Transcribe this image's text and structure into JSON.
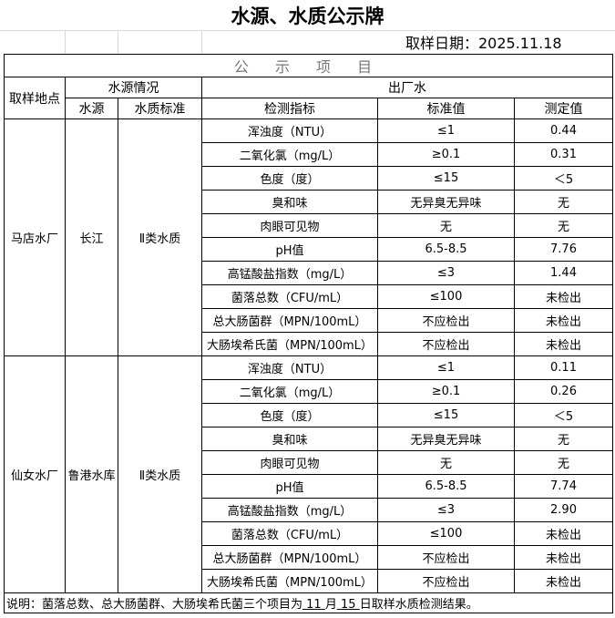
{
  "title": "水源、水质公示牌",
  "sample_date": "取样日期：2025.11.18",
  "section_title": "公 示 项 目",
  "headers": {
    "location": "取样地点",
    "source_info": "水源情况",
    "outlet": "出厂水",
    "source": "水源",
    "source_standard": "水质标准",
    "indicator": "检测指标",
    "standard": "标准值",
    "measured": "测定值"
  },
  "sites": [
    {
      "location": "马店水厂",
      "source": "长江",
      "standard": "Ⅱ类水质",
      "rows": [
        [
          "浑浊度（NTU）",
          "≤1",
          "0.44"
        ],
        [
          "二氧化氯（mg/L）",
          "≥0.1",
          "0.31"
        ],
        [
          "色度（度）",
          "≤15",
          "＜5"
        ],
        [
          "臭和味",
          "无异臭无异味",
          "无"
        ],
        [
          "肉眼可见物",
          "无",
          "无"
        ],
        [
          "pH值",
          "6.5-8.5",
          "7.76"
        ],
        [
          "高锰酸盐指数（mg/L）",
          "≤3",
          "1.44"
        ],
        [
          "菌落总数（CFU/mL）",
          "≤100",
          "未检出"
        ],
        [
          "总大肠菌群（MPN/100mL）",
          "不应检出",
          "未检出"
        ],
        [
          "大肠埃希氏菌（MPN/100mL）",
          "不应检出",
          "未检出"
        ]
      ]
    },
    {
      "location": "仙女水厂",
      "source": "鲁港水库",
      "standard": "Ⅱ类水质",
      "rows": [
        [
          "浑浊度（NTU）",
          "≤1",
          "0.11"
        ],
        [
          "二氧化氯（mg/L）",
          "≥0.1",
          "0.26"
        ],
        [
          "色度（度）",
          "≤15",
          "＜5"
        ],
        [
          "臭和味",
          "无异臭无异味",
          "无"
        ],
        [
          "肉眼可见物",
          "无",
          "无"
        ],
        [
          "pH值",
          "6.5-8.5",
          "7.74"
        ],
        [
          "高锰酸盐指数（mg/L）",
          "≤3",
          "2.90"
        ],
        [
          "菌落总数（CFU/mL）",
          "≤100",
          "未检出"
        ],
        [
          "总大肠菌群（MPN/100mL）",
          "不应检出",
          "未检出"
        ],
        [
          "大肠埃希氏菌（MPN/100mL）",
          "不应检出",
          "未检出"
        ]
      ]
    }
  ],
  "note": {
    "prefix": "说明：菌落总数、总大肠菌群、大肠埃希氏菌三个项目为",
    "month": "11",
    "month_label": "月",
    "day": "15",
    "suffix": "日取样水质检测结果。"
  }
}
